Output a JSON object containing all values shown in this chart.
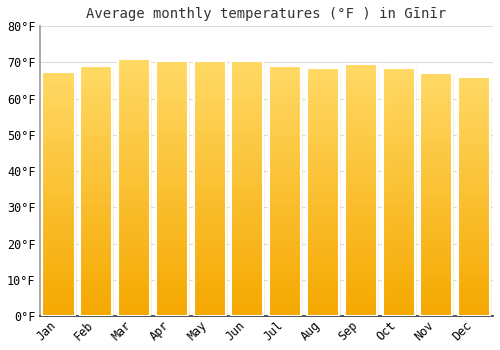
{
  "title": "Average monthly temperatures (°F ) in Gīnīr",
  "months": [
    "Jan",
    "Feb",
    "Mar",
    "Apr",
    "May",
    "Jun",
    "Jul",
    "Aug",
    "Sep",
    "Oct",
    "Nov",
    "Dec"
  ],
  "values": [
    67.5,
    69.0,
    71.0,
    70.5,
    70.5,
    70.5,
    69.0,
    68.5,
    69.5,
    68.5,
    67.0,
    66.0
  ],
  "bar_color_bottom": "#F5A800",
  "bar_color_top": "#FFD966",
  "bar_edge_color": "#FFFFFF",
  "background_color": "#FFFFFF",
  "plot_bg_color": "#FFFFFF",
  "grid_color": "#DDDDDD",
  "ylim": [
    0,
    80
  ],
  "yticks": [
    0,
    10,
    20,
    30,
    40,
    50,
    60,
    70,
    80
  ],
  "ytick_labels": [
    "0°F",
    "10°F",
    "20°F",
    "30°F",
    "40°F",
    "50°F",
    "60°F",
    "70°F",
    "80°F"
  ],
  "title_fontsize": 10,
  "tick_fontsize": 8.5,
  "bar_width": 0.85,
  "n_grad": 40
}
